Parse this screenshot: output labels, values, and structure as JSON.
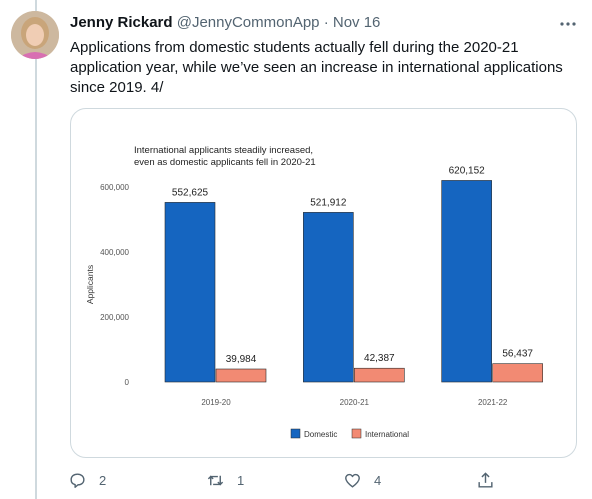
{
  "tweet": {
    "author_name": "Jenny Rickard",
    "handle": "@JennyCommonApp",
    "separator": "·",
    "date": "Nov 16",
    "text": "Applications from domestic students actually fell during the 2020-21 application year, while we’ve seen an increase in international applications since 2019. 4/"
  },
  "actions": {
    "reply_count": "2",
    "retweet_count": "1",
    "like_count": "4"
  },
  "icons": {
    "reply": "reply-icon",
    "retweet": "retweet-icon",
    "like": "like-icon",
    "share": "share-icon",
    "more": "more-icon"
  },
  "colors": {
    "domestic": "#1565c0",
    "international": "#f28a73",
    "muted": "#536471"
  },
  "chart_data": {
    "type": "bar",
    "title": "International applicants steadily increased,\neven as domestic applicants fell in 2020-21",
    "title_lines": [
      "International applicants steadily increased,",
      "even as domestic applicants fell in 2020-21"
    ],
    "ylabel": "Applicants",
    "xlabel": "",
    "ylim": [
      0,
      600000
    ],
    "yticks": [
      0,
      200000,
      400000,
      600000
    ],
    "ytick_labels": [
      "0",
      "200,000",
      "400,000",
      "600,000"
    ],
    "categories": [
      "2019-20",
      "2020-21",
      "2021-22"
    ],
    "series": [
      {
        "name": "Domestic",
        "color": "#1565c0",
        "values": [
          552625,
          521912,
          620152
        ],
        "labels": [
          "552,625",
          "521,912",
          "620,152"
        ]
      },
      {
        "name": "International",
        "color": "#f28a73",
        "values": [
          39984,
          42387,
          56437
        ],
        "labels": [
          "39,984",
          "42,387",
          "56,437"
        ]
      }
    ],
    "legend_position": "bottom",
    "grid": false
  }
}
